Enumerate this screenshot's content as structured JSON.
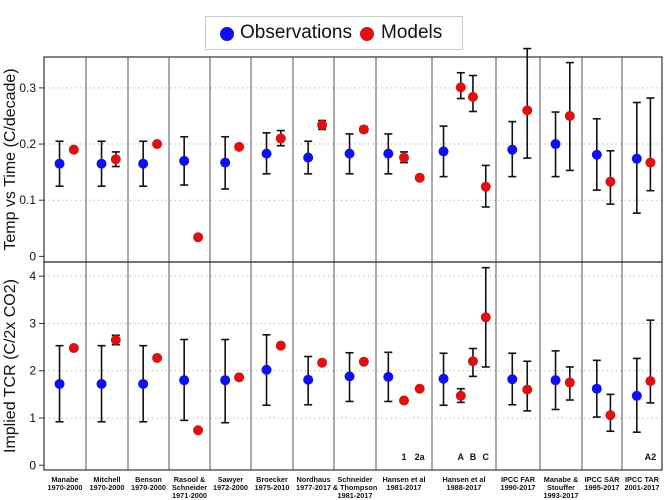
{
  "colors": {
    "observations": "#1010ee",
    "models": "#dd1111",
    "grid": "#bbbbbb",
    "axis": "#333333",
    "text": "#111111"
  },
  "legend": {
    "observations": "Observations",
    "models": "Models"
  },
  "chart_data": [
    {
      "type": "errorbar",
      "title": "",
      "ylabel": "Temp vs Time (C/decade)",
      "ylim": [
        -0.01,
        0.355
      ],
      "yticks": [
        0,
        0.1,
        0.2,
        0.3
      ],
      "ytick_labels": [
        "0",
        "0.1",
        "0.2",
        "0.3"
      ],
      "grid_y": [
        0.1,
        0.2,
        0.3
      ],
      "groups": [
        {
          "id": "manabe",
          "obs": {
            "value": 0.165,
            "low": 0.125,
            "high": 0.205
          },
          "models": [
            {
              "value": 0.19,
              "low": 0.186,
              "high": 0.194,
              "label": ""
            }
          ]
        },
        {
          "id": "mitchell",
          "obs": {
            "value": 0.165,
            "low": 0.125,
            "high": 0.205
          },
          "models": [
            {
              "value": 0.173,
              "low": 0.16,
              "high": 0.186,
              "label": ""
            }
          ]
        },
        {
          "id": "benson",
          "obs": {
            "value": 0.165,
            "low": 0.125,
            "high": 0.205
          },
          "models": [
            {
              "value": 0.2,
              "low": 0.197,
              "high": 0.203,
              "label": ""
            }
          ]
        },
        {
          "id": "rasool",
          "obs": {
            "value": 0.17,
            "low": 0.127,
            "high": 0.213
          },
          "models": [
            {
              "value": 0.034,
              "low": 0.032,
              "high": 0.036,
              "label": ""
            }
          ]
        },
        {
          "id": "sawyer",
          "obs": {
            "value": 0.167,
            "low": 0.12,
            "high": 0.213
          },
          "models": [
            {
              "value": 0.195,
              "low": 0.192,
              "high": 0.198,
              "label": ""
            }
          ]
        },
        {
          "id": "broecker",
          "obs": {
            "value": 0.183,
            "low": 0.147,
            "high": 0.22
          },
          "models": [
            {
              "value": 0.21,
              "low": 0.197,
              "high": 0.224,
              "label": ""
            }
          ]
        },
        {
          "id": "nordhaus",
          "obs": {
            "value": 0.176,
            "low": 0.147,
            "high": 0.205
          },
          "models": [
            {
              "value": 0.234,
              "low": 0.226,
              "high": 0.242,
              "label": ""
            }
          ]
        },
        {
          "id": "schneider",
          "obs": {
            "value": 0.183,
            "low": 0.147,
            "high": 0.218
          },
          "models": [
            {
              "value": 0.226,
              "low": 0.221,
              "high": 0.231,
              "label": ""
            }
          ]
        },
        {
          "id": "hansen81",
          "obs": {
            "value": 0.183,
            "low": 0.147,
            "high": 0.218
          },
          "models": [
            {
              "value": 0.176,
              "low": 0.167,
              "high": 0.186,
              "label": "1"
            },
            {
              "value": 0.14,
              "low": 0.136,
              "high": 0.144,
              "label": "2a"
            }
          ]
        },
        {
          "id": "hansen88",
          "obs": {
            "value": 0.187,
            "low": 0.142,
            "high": 0.232
          },
          "models": [
            {
              "value": 0.301,
              "low": 0.281,
              "high": 0.327
            },
            {
              "value": 0.284,
              "low": 0.258,
              "high": 0.322
            },
            {
              "value": 0.124,
              "low": 0.088,
              "high": 0.162
            }
          ]
        },
        {
          "id": "ipccfar",
          "obs": {
            "value": 0.19,
            "low": 0.142,
            "high": 0.24
          },
          "models": [
            {
              "value": 0.26,
              "low": 0.175,
              "high": 0.37
            }
          ]
        },
        {
          "id": "manabe93",
          "obs": {
            "value": 0.2,
            "low": 0.142,
            "high": 0.257
          },
          "models": [
            {
              "value": 0.25,
              "low": 0.153,
              "high": 0.345
            }
          ]
        },
        {
          "id": "ipccsar",
          "obs": {
            "value": 0.181,
            "low": 0.118,
            "high": 0.245
          },
          "models": [
            {
              "value": 0.133,
              "low": 0.093,
              "high": 0.188
            }
          ]
        },
        {
          "id": "ipcctar",
          "obs": {
            "value": 0.174,
            "low": 0.077,
            "high": 0.274
          },
          "models": [
            {
              "value": 0.167,
              "low": 0.117,
              "high": 0.282
            }
          ]
        }
      ]
    },
    {
      "type": "errorbar",
      "title": "",
      "ylabel": "Implied TCR (C/2x CO2)",
      "ylim": [
        -0.1,
        4.3
      ],
      "yticks": [
        0,
        1,
        2,
        3,
        4
      ],
      "ytick_labels": [
        "0",
        "1",
        "2",
        "3",
        "4"
      ],
      "grid_y": [
        1,
        2,
        3,
        4
      ],
      "groups": [
        {
          "id": "manabe",
          "obs": {
            "value": 1.72,
            "low": 0.92,
            "high": 2.53
          },
          "models": [
            {
              "value": 2.48,
              "low": 2.44,
              "high": 2.52,
              "label": ""
            }
          ]
        },
        {
          "id": "mitchell",
          "obs": {
            "value": 1.72,
            "low": 0.92,
            "high": 2.53
          },
          "models": [
            {
              "value": 2.65,
              "low": 2.55,
              "high": 2.75,
              "label": ""
            }
          ]
        },
        {
          "id": "benson",
          "obs": {
            "value": 1.72,
            "low": 0.92,
            "high": 2.53
          },
          "models": [
            {
              "value": 2.27,
              "low": 2.23,
              "high": 2.31,
              "label": ""
            }
          ]
        },
        {
          "id": "rasool",
          "obs": {
            "value": 1.8,
            "low": 0.95,
            "high": 2.66
          },
          "models": [
            {
              "value": 0.74,
              "low": 0.71,
              "high": 0.77,
              "label": ""
            }
          ]
        },
        {
          "id": "sawyer",
          "obs": {
            "value": 1.8,
            "low": 0.9,
            "high": 2.66
          },
          "models": [
            {
              "value": 1.86,
              "low": 1.82,
              "high": 1.9,
              "label": ""
            }
          ]
        },
        {
          "id": "broecker",
          "obs": {
            "value": 2.02,
            "low": 1.27,
            "high": 2.76
          },
          "models": [
            {
              "value": 2.53,
              "low": 2.49,
              "high": 2.57,
              "label": ""
            }
          ]
        },
        {
          "id": "nordhaus",
          "obs": {
            "value": 1.81,
            "low": 1.28,
            "high": 2.3
          },
          "models": [
            {
              "value": 2.17,
              "low": 2.13,
              "high": 2.21,
              "label": ""
            }
          ]
        },
        {
          "id": "schneider",
          "obs": {
            "value": 1.88,
            "low": 1.35,
            "high": 2.38
          },
          "models": [
            {
              "value": 2.19,
              "low": 2.15,
              "high": 2.23,
              "label": ""
            }
          ]
        },
        {
          "id": "hansen81",
          "obs": {
            "value": 1.87,
            "low": 1.35,
            "high": 2.39
          },
          "models": [
            {
              "value": 1.37,
              "low": 1.33,
              "high": 1.41,
              "label": ""
            },
            {
              "value": 1.62,
              "low": 1.58,
              "high": 1.66,
              "label": ""
            }
          ]
        },
        {
          "id": "hansen88",
          "obs": {
            "value": 1.83,
            "low": 1.27,
            "high": 2.37
          },
          "models": [
            {
              "value": 1.47,
              "low": 1.33,
              "high": 1.62
            },
            {
              "value": 2.2,
              "low": 1.88,
              "high": 2.47
            },
            {
              "value": 3.13,
              "low": 2.08,
              "high": 4.18
            }
          ]
        },
        {
          "id": "ipccfar",
          "obs": {
            "value": 1.82,
            "low": 1.28,
            "high": 2.37
          },
          "models": [
            {
              "value": 1.6,
              "low": 1.15,
              "high": 2.2
            }
          ]
        },
        {
          "id": "manabe93",
          "obs": {
            "value": 1.8,
            "low": 1.18,
            "high": 2.42
          },
          "models": [
            {
              "value": 1.75,
              "low": 1.38,
              "high": 2.08
            }
          ]
        },
        {
          "id": "ipccsar",
          "obs": {
            "value": 1.62,
            "low": 1.02,
            "high": 2.22
          },
          "models": [
            {
              "value": 1.06,
              "low": 0.72,
              "high": 1.5
            }
          ]
        },
        {
          "id": "ipcctar",
          "obs": {
            "value": 1.47,
            "low": 0.7,
            "high": 2.26
          },
          "models": [
            {
              "value": 1.78,
              "low": 1.32,
              "high": 3.07
            }
          ]
        }
      ]
    }
  ],
  "xaxis": {
    "groups": [
      {
        "id": "manabe",
        "label": [
          "Manabe",
          "1970-2000"
        ]
      },
      {
        "id": "mitchell",
        "label": [
          "Mitchell",
          "1970-2000"
        ]
      },
      {
        "id": "benson",
        "label": [
          "Benson",
          "1970-2000"
        ]
      },
      {
        "id": "rasool",
        "label": [
          "Rasool &",
          "Schneider",
          "1971-2000"
        ]
      },
      {
        "id": "sawyer",
        "label": [
          "Sawyer",
          "1972-2000"
        ]
      },
      {
        "id": "broecker",
        "label": [
          "Broecker",
          "1975-2010"
        ]
      },
      {
        "id": "nordhaus",
        "label": [
          "Nordhaus",
          "1977-2017"
        ]
      },
      {
        "id": "schneider",
        "label": [
          "Schneider",
          "& Thompson",
          "1981-2017"
        ]
      },
      {
        "id": "hansen81",
        "label": [
          "Hansen et al",
          "1981-2017"
        ],
        "scenario_labels": [
          "1",
          "2a"
        ]
      },
      {
        "id": "hansen88",
        "label": [
          "Hansen et al",
          "1988-2017"
        ],
        "scenario_labels": [
          "A",
          "B",
          "C"
        ]
      },
      {
        "id": "ipccfar",
        "label": [
          "IPCC FAR",
          "1990-2017"
        ]
      },
      {
        "id": "manabe93",
        "label": [
          "Manabe &",
          "Stouffer",
          "1993-2017"
        ]
      },
      {
        "id": "ipccsar",
        "label": [
          "IPCC SAR",
          "1995-2017"
        ]
      },
      {
        "id": "ipcctar",
        "label": [
          "IPCC TAR",
          "2001-2017"
        ],
        "scenario_labels": [
          "A2"
        ]
      }
    ]
  }
}
